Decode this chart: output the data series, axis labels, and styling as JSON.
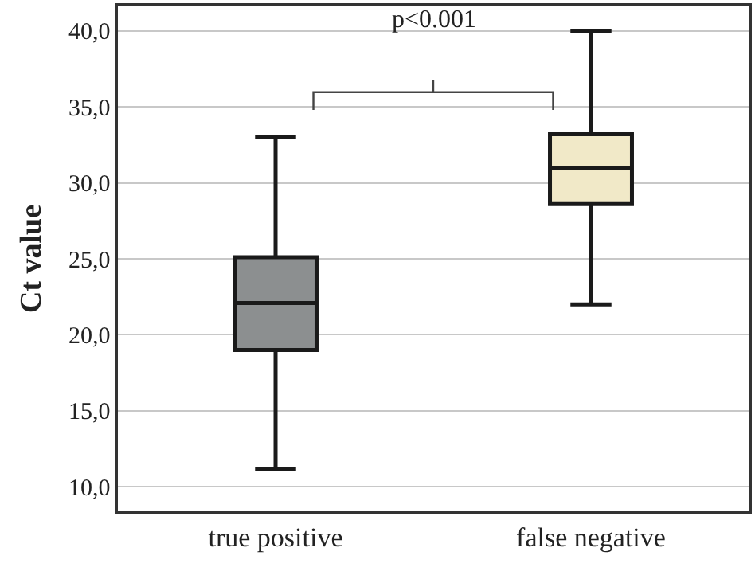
{
  "chart_data": {
    "type": "box",
    "ylabel": "Ct value",
    "categories": [
      "true positive",
      "false negative"
    ],
    "series": [
      {
        "color": "#8c8f90",
        "boxes": [
          {
            "low": 11.2,
            "q1": 19.0,
            "median": 22.1,
            "q3": 25.1,
            "high": 33.0
          },
          null
        ]
      },
      {
        "color": "#f1e9c8",
        "boxes": [
          null,
          {
            "low": 22.0,
            "q1": 28.6,
            "median": 31.0,
            "q3": 33.2,
            "high": 40.0
          }
        ]
      }
    ],
    "ylim": [
      8.4,
      41.6
    ],
    "yticks": [
      {
        "value": 10,
        "label": "10,0"
      },
      {
        "value": 15,
        "label": "15,0"
      },
      {
        "value": 20,
        "label": "20,0"
      },
      {
        "value": 25,
        "label": "25,0"
      },
      {
        "value": 30,
        "label": "30,0"
      },
      {
        "value": 35,
        "label": "35,0"
      },
      {
        "value": 40,
        "label": "40,0"
      }
    ],
    "grid": "y",
    "annotations": [
      "p<0.001"
    ]
  }
}
